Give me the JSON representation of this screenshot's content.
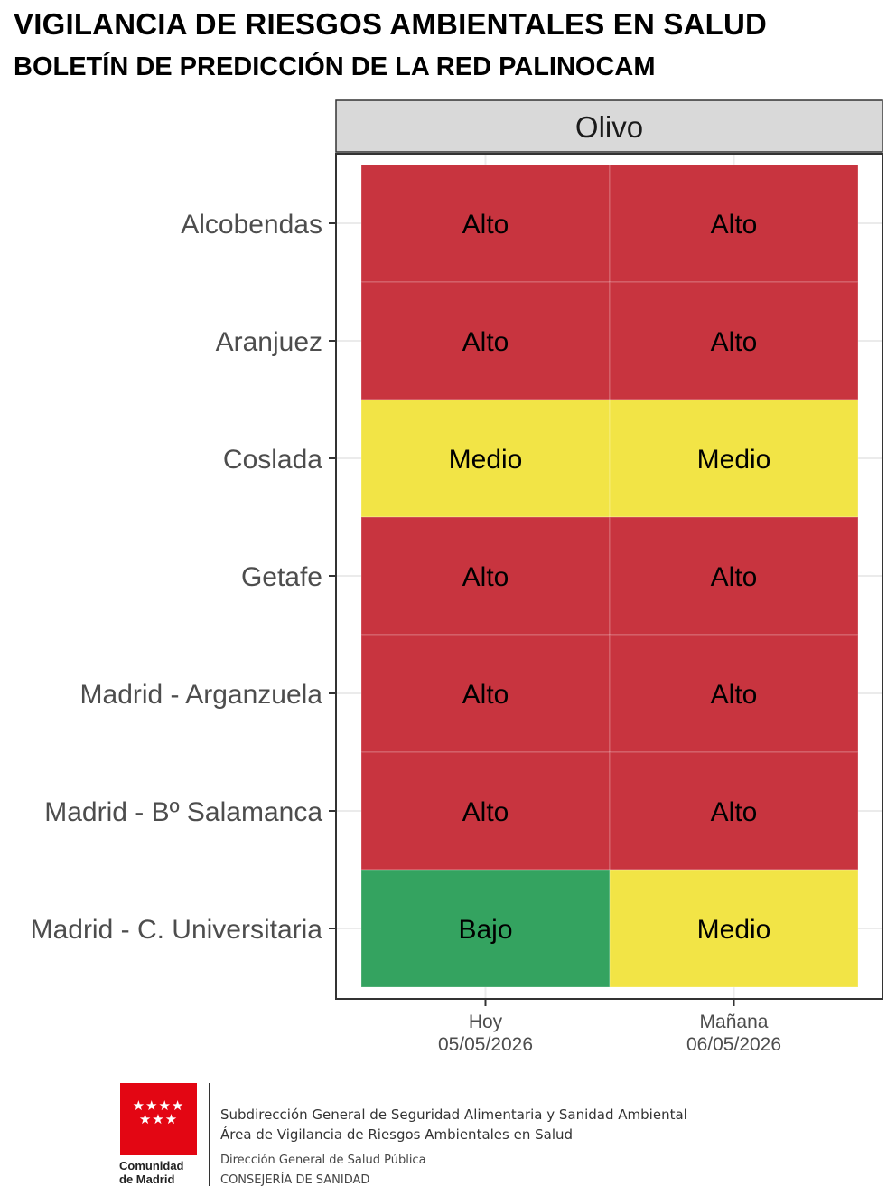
{
  "header": {
    "title": "VIGILANCIA DE RIESGOS AMBIENTALES EN SALUD",
    "subtitle": "BOLETÍN DE PREDICCIÓN DE LA RED PALINOCAM"
  },
  "colors": {
    "Alto": "#c8343f",
    "Medio": "#f2e446",
    "Bajo": "#34a360",
    "panel_strip": "#d9d9d9",
    "grid": "#ebebeb",
    "axis_text": "#4d4d4d"
  },
  "chart_data": {
    "type": "heatmap",
    "facet": "Olivo",
    "columns": [
      {
        "label": "Hoy",
        "date": "05/05/2026"
      },
      {
        "label": "Mañana",
        "date": "06/05/2026"
      }
    ],
    "rows": [
      "Alcobendas",
      "Aranjuez",
      "Coslada",
      "Getafe",
      "Madrid - Arganzuela",
      "Madrid - Bº Salamanca",
      "Madrid - C. Universitaria"
    ],
    "values": [
      [
        "Alto",
        "Alto"
      ],
      [
        "Alto",
        "Alto"
      ],
      [
        "Medio",
        "Medio"
      ],
      [
        "Alto",
        "Alto"
      ],
      [
        "Alto",
        "Alto"
      ],
      [
        "Alto",
        "Alto"
      ],
      [
        "Bajo",
        "Medio"
      ]
    ]
  },
  "footer": {
    "logo_stars": "★★★★\n★★★",
    "logo_line1": "Comunidad",
    "logo_line2": "de Madrid",
    "line1": "Subdirección General de Seguridad Alimentaria y  Sanidad Ambiental",
    "line2": "Área de Vigilancia de Riesgos  Ambientales en Salud",
    "line3": "Dirección General de Salud Pública",
    "line4": "CONSEJERÍA DE SANIDAD"
  }
}
